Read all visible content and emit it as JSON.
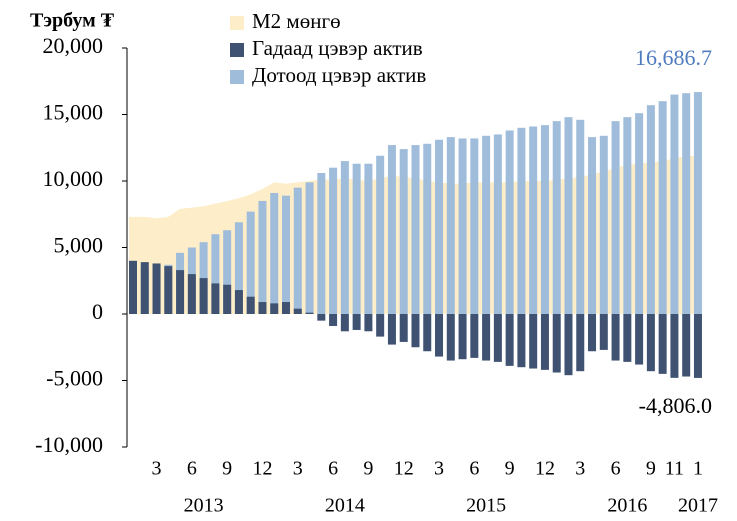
{
  "chart_data": {
    "type": "bar_area",
    "title": "Тэрбум ₮",
    "categories": [
      null,
      null,
      "3",
      null,
      null,
      "6",
      null,
      null,
      "9",
      null,
      null,
      "12",
      null,
      null,
      "3",
      null,
      null,
      "6",
      null,
      null,
      "9",
      null,
      null,
      "12",
      null,
      null,
      "3",
      null,
      null,
      "6",
      null,
      null,
      "9",
      null,
      null,
      "12",
      null,
      null,
      "3",
      null,
      null,
      "6",
      null,
      null,
      "9",
      null,
      "11",
      null,
      "1"
    ],
    "year_labels": [
      "2013",
      "2014",
      "2015",
      "2016",
      "2017"
    ],
    "series": [
      {
        "name": "М2 мөнгө",
        "color": "#fdedc8",
        "kind": "area",
        "values": [
          7300,
          7300,
          7200,
          7300,
          7900,
          8000,
          8100,
          8300,
          8500,
          8700,
          9000,
          9400,
          9900,
          9800,
          9900,
          10000,
          10100,
          10100,
          10200,
          10100,
          10000,
          10200,
          10400,
          10300,
          10200,
          10000,
          9900,
          9800,
          9800,
          9900,
          9900,
          9900,
          9900,
          10000,
          10000,
          10000,
          10100,
          10200,
          10300,
          10500,
          10700,
          11000,
          11200,
          11300,
          11400,
          11500,
          11700,
          11900,
          11880
        ]
      },
      {
        "name": "Гадаад цэвэр  актив",
        "color": "#3f5272",
        "kind": "bar",
        "values": [
          4000,
          3900,
          3800,
          3600,
          3300,
          3000,
          2700,
          2300,
          2200,
          1800,
          1300,
          900,
          800,
          900,
          400,
          100,
          -500,
          -900,
          -1300,
          -1200,
          -1300,
          -1700,
          -2300,
          -2100,
          -2500,
          -2800,
          -3200,
          -3500,
          -3400,
          -3300,
          -3500,
          -3600,
          -3900,
          -4000,
          -4100,
          -4200,
          -4400,
          -4600,
          -4300,
          -2800,
          -2700,
          -3500,
          -3600,
          -3800,
          -4300,
          -4500,
          -4800,
          -4700,
          -4806.0
        ],
        "value_labels": [
          null,
          null,
          null,
          null,
          null,
          null,
          null,
          null,
          null,
          null,
          null,
          null,
          null,
          null,
          null,
          null,
          null,
          null,
          null,
          null,
          null,
          null,
          null,
          null,
          null,
          null,
          null,
          null,
          null,
          null,
          null,
          null,
          null,
          null,
          null,
          null,
          null,
          null,
          null,
          null,
          null,
          null,
          null,
          null,
          null,
          null,
          null,
          null,
          "-4,806.0"
        ],
        "label_color": "#000000"
      },
      {
        "name": "Дотоод цэвэр актив",
        "color": "#9fbddb",
        "kind": "bar",
        "values": [
          3300,
          3400,
          3400,
          3700,
          4600,
          5000,
          5400,
          6000,
          6300,
          6900,
          7700,
          8500,
          9100,
          8900,
          9500,
          9900,
          10600,
          11000,
          11500,
          11300,
          11300,
          11900,
          12700,
          12400,
          12700,
          12800,
          13100,
          13300,
          13200,
          13200,
          13400,
          13500,
          13800,
          14000,
          14100,
          14200,
          14500,
          14800,
          14600,
          13300,
          13400,
          14500,
          14800,
          15100,
          15700,
          16000,
          16500,
          16600,
          16686.7
        ],
        "value_labels": [
          null,
          null,
          null,
          null,
          null,
          null,
          null,
          null,
          null,
          null,
          null,
          null,
          null,
          null,
          null,
          null,
          null,
          null,
          null,
          null,
          null,
          null,
          null,
          null,
          null,
          null,
          null,
          null,
          null,
          null,
          null,
          null,
          null,
          null,
          null,
          null,
          null,
          null,
          null,
          null,
          null,
          null,
          null,
          null,
          null,
          null,
          null,
          null,
          "16,686.7"
        ],
        "label_color": "#4f7cbf"
      }
    ],
    "ylim": [
      -10000,
      20000
    ],
    "yticks": [
      {
        "value": -10000,
        "label": "-10,000"
      },
      {
        "value": -5000,
        "label": "-5,000"
      },
      0,
      {
        "value": 5000,
        "label": "5,000"
      },
      {
        "value": 10000,
        "label": "10,000"
      },
      {
        "value": 15000,
        "label": "15,000"
      },
      {
        "value": 20000,
        "label": "20,000"
      }
    ],
    "legend": "top-left"
  }
}
